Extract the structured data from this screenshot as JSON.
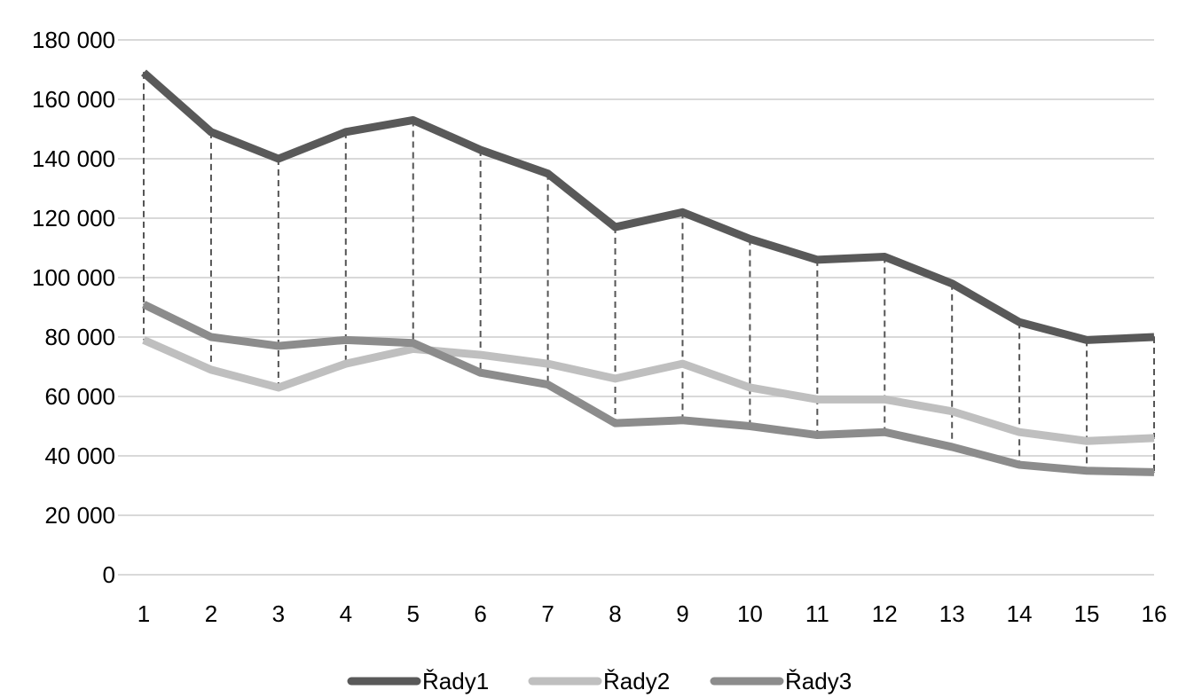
{
  "chart_data": {
    "type": "line",
    "categories": [
      "1",
      "2",
      "3",
      "4",
      "5",
      "6",
      "7",
      "8",
      "9",
      "10",
      "11",
      "12",
      "13",
      "14",
      "15",
      "16"
    ],
    "ylim": [
      0,
      180000
    ],
    "y_ticks": [
      0,
      20000,
      40000,
      60000,
      80000,
      100000,
      120000,
      140000,
      160000,
      180000
    ],
    "y_tick_labels": [
      "0",
      "20 000",
      "40 000",
      "60 000",
      "80 000",
      "100 000",
      "120 000",
      "140 000",
      "160 000",
      "180 000"
    ],
    "grid": "horizontal",
    "drop_lines": true,
    "legend_position": "bottom",
    "series": [
      {
        "name": "Řady1",
        "color": "#595959",
        "values": [
          169000,
          149000,
          140000,
          149000,
          153000,
          143000,
          135000,
          117000,
          122000,
          113000,
          106000,
          107000,
          98000,
          85000,
          79000,
          80000
        ]
      },
      {
        "name": "Řady2",
        "color": "#bfbfbf",
        "values": [
          79000,
          69000,
          63000,
          71000,
          76000,
          74000,
          71000,
          66000,
          71000,
          63000,
          59000,
          59000,
          55000,
          48000,
          45000,
          46000
        ]
      },
      {
        "name": "Řady3",
        "color": "#8c8c8c",
        "values": [
          91000,
          80000,
          77000,
          79000,
          78000,
          68000,
          64000,
          51000,
          52000,
          50000,
          47000,
          48000,
          43000,
          37000,
          35000,
          34500
        ]
      }
    ]
  }
}
